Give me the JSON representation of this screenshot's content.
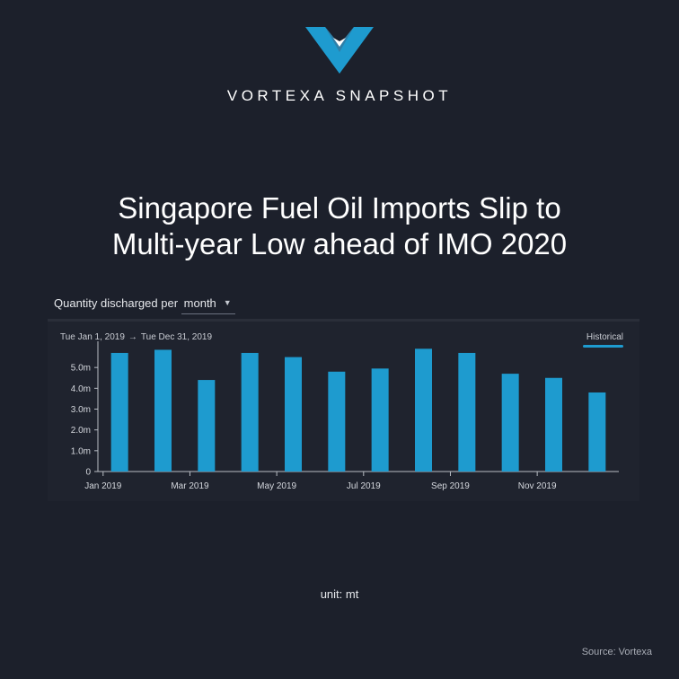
{
  "brand": {
    "name": "VORTEXA SNAPSHOT"
  },
  "title": {
    "line1": "Singapore Fuel Oil Imports Slip to",
    "line2": "Multi-year Low ahead of IMO 2020"
  },
  "controls": {
    "quantity_prefix": "Quantity discharged per",
    "period_value": "month",
    "date_from": "Tue Jan 1, 2019",
    "date_to": "Tue Dec 31, 2019",
    "mode_tab": "Historical"
  },
  "unit_label": "unit: mt",
  "source": "Source: Vortexa",
  "colors": {
    "background": "#1c202b",
    "bar": "#1e9bcf",
    "accent": "#1e9bcf"
  },
  "chart_data": {
    "type": "bar",
    "categories": [
      "Jan 2019",
      "Feb 2019",
      "Mar 2019",
      "Apr 2019",
      "May 2019",
      "Jun 2019",
      "Jul 2019",
      "Aug 2019",
      "Sep 2019",
      "Oct 2019",
      "Nov 2019",
      "Dec 2019"
    ],
    "x_tick_labels": [
      "Jan 2019",
      "Mar 2019",
      "May 2019",
      "Jul 2019",
      "Sep 2019",
      "Nov 2019"
    ],
    "values": [
      5.7,
      5.85,
      4.4,
      5.7,
      5.5,
      4.8,
      4.95,
      5.9,
      5.7,
      4.7,
      4.5,
      3.8
    ],
    "y_ticks": [
      0,
      1.0,
      2.0,
      3.0,
      4.0,
      5.0
    ],
    "y_tick_labels": [
      "0",
      "1.0m",
      "2.0m",
      "3.0m",
      "4.0m",
      "5.0m"
    ],
    "ylim": [
      0,
      6
    ],
    "title": "",
    "xlabel": "",
    "ylabel": "",
    "grid": false
  }
}
